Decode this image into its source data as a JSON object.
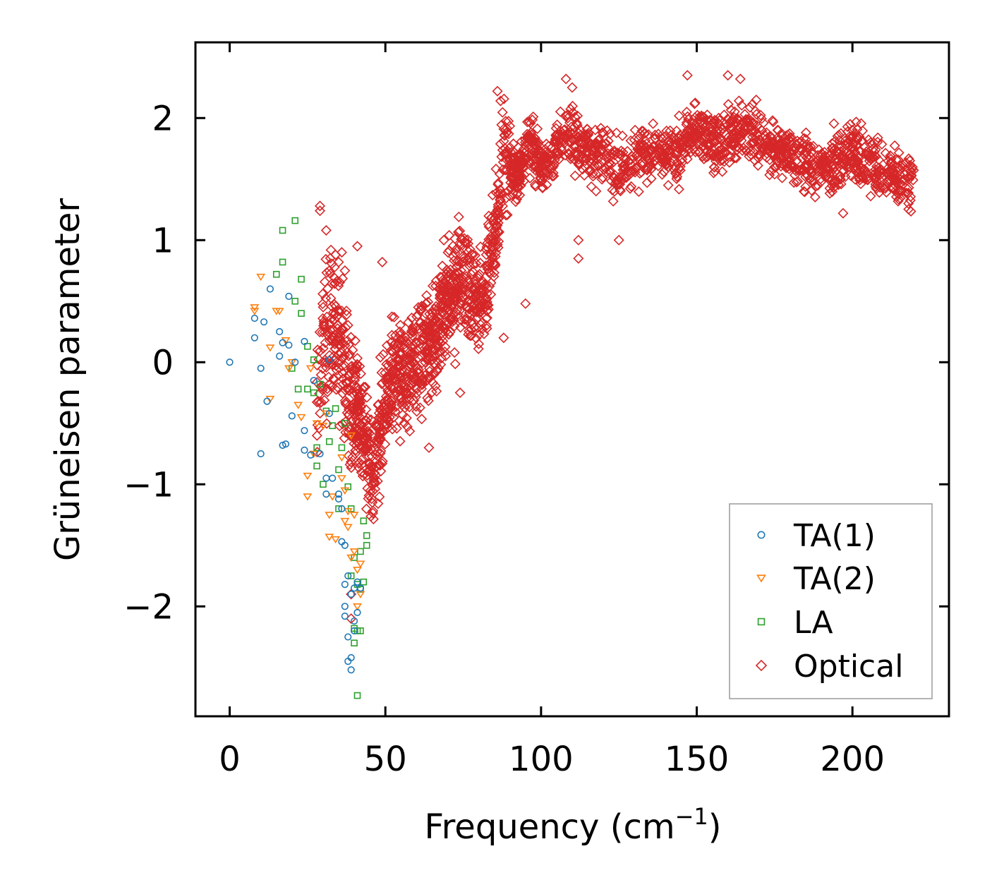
{
  "chart_data": {
    "type": "scatter",
    "xlabel": "Frequency (cm",
    "xlabel_sup": "−1",
    "xlabel_end": ")",
    "ylabel": "Grüneisen parameter",
    "xlim": [
      -11,
      231
    ],
    "ylim": [
      -2.9,
      2.62
    ],
    "xticks": [
      0,
      50,
      100,
      150,
      200
    ],
    "xtick_labels": [
      "0",
      "50",
      "100",
      "150",
      "200"
    ],
    "yticks": [
      -2,
      -1,
      0,
      1,
      2
    ],
    "ytick_labels": [
      "−2",
      "−1",
      "0",
      "1",
      "2"
    ],
    "legend_position": "bottom-right",
    "series": [
      {
        "name": "TA(1)",
        "marker": "circle",
        "color": "#1f77b4",
        "points": [
          [
            0,
            0
          ],
          [
            8,
            0.2
          ],
          [
            8,
            0.36
          ],
          [
            10,
            -0.05
          ],
          [
            10,
            -0.75
          ],
          [
            11,
            0.33
          ],
          [
            12,
            -0.32
          ],
          [
            13,
            0.6
          ],
          [
            16,
            0.05
          ],
          [
            16,
            0.25
          ],
          [
            17,
            -0.68
          ],
          [
            17,
            0.16
          ],
          [
            18,
            -0.67
          ],
          [
            19,
            0.54
          ],
          [
            19,
            0.14
          ],
          [
            20,
            -0.44
          ],
          [
            21,
            0.0
          ],
          [
            24,
            0.17
          ],
          [
            24,
            -0.56
          ],
          [
            24,
            -0.72
          ],
          [
            26,
            -0.76
          ],
          [
            27,
            -0.15
          ],
          [
            29,
            -0.75
          ],
          [
            31,
            -1.08
          ],
          [
            31,
            -0.95
          ],
          [
            32,
            0.02
          ],
          [
            32,
            -0.42
          ],
          [
            33,
            -0.95
          ],
          [
            35,
            -1.12
          ],
          [
            35,
            -1.08
          ],
          [
            36,
            -1.2
          ],
          [
            36,
            -1.47
          ],
          [
            37,
            -1.5
          ],
          [
            37,
            -1.82
          ],
          [
            37,
            -2.0
          ],
          [
            37,
            -2.08
          ],
          [
            38,
            -1.75
          ],
          [
            38,
            -2.25
          ],
          [
            38,
            -2.45
          ],
          [
            39,
            -1.9
          ],
          [
            39,
            -2.42
          ],
          [
            39,
            -2.52
          ],
          [
            40,
            -1.85
          ],
          [
            40,
            -2.12
          ],
          [
            40,
            -2.2
          ],
          [
            41,
            -2.05
          ],
          [
            41,
            -1.8
          ],
          [
            42,
            -1.85
          ]
        ]
      },
      {
        "name": "TA(2)",
        "marker": "triangle-down",
        "color": "#ff7f0e",
        "points": [
          [
            8,
            0.45
          ],
          [
            8,
            0.42
          ],
          [
            10,
            0.7
          ],
          [
            13,
            0.12
          ],
          [
            13,
            -0.3
          ],
          [
            15,
            0.42
          ],
          [
            16,
            0.42
          ],
          [
            18,
            0.18
          ],
          [
            19,
            -0.05
          ],
          [
            20,
            0.0
          ],
          [
            22,
            -0.35
          ],
          [
            23,
            -0.45
          ],
          [
            25,
            -0.93
          ],
          [
            25,
            -1.1
          ],
          [
            26,
            -0.05
          ],
          [
            27,
            -0.75
          ],
          [
            28,
            -0.5
          ],
          [
            30,
            -0.52
          ],
          [
            31,
            -0.42
          ],
          [
            32,
            -1.25
          ],
          [
            32,
            -1.43
          ],
          [
            33,
            -1.1
          ],
          [
            34,
            -1.45
          ],
          [
            36,
            -0.95
          ],
          [
            36,
            -0.78
          ],
          [
            37,
            -1.3
          ],
          [
            37,
            -1.05
          ],
          [
            38,
            -1.35
          ],
          [
            38,
            -1.22
          ],
          [
            39,
            -0.6
          ],
          [
            39,
            -1.6
          ],
          [
            40,
            -1.55
          ],
          [
            40,
            -1.25
          ],
          [
            41,
            -2.0
          ],
          [
            41,
            -1.7
          ],
          [
            42,
            -1.65
          ],
          [
            42,
            -1.9
          ]
        ]
      },
      {
        "name": "LA",
        "marker": "square",
        "color": "#2ca02c",
        "points": [
          [
            17,
            1.08
          ],
          [
            17,
            0.82
          ],
          [
            15,
            0.72
          ],
          [
            21,
            1.16
          ],
          [
            21,
            0.5
          ],
          [
            23,
            0.68
          ],
          [
            23,
            0.4
          ],
          [
            20,
            -0.05
          ],
          [
            22,
            -0.22
          ],
          [
            25,
            -0.22
          ],
          [
            25,
            0.13
          ],
          [
            27,
            -0.25
          ],
          [
            27,
            0.02
          ],
          [
            28,
            -0.85
          ],
          [
            28,
            -0.7
          ],
          [
            29,
            -0.18
          ],
          [
            30,
            -1.0
          ],
          [
            31,
            -0.4
          ],
          [
            32,
            -0.65
          ],
          [
            33,
            -0.52
          ],
          [
            34,
            -0.38
          ],
          [
            35,
            -0.88
          ],
          [
            35,
            -1.2
          ],
          [
            36,
            -0.7
          ],
          [
            37,
            -0.5
          ],
          [
            38,
            -1.02
          ],
          [
            39,
            -1.2
          ],
          [
            39,
            -1.75
          ],
          [
            40,
            -1.6
          ],
          [
            40,
            -2.18
          ],
          [
            40,
            -2.3
          ],
          [
            41,
            -1.82
          ],
          [
            41,
            -2.2
          ],
          [
            41,
            -2.73
          ],
          [
            42,
            -1.55
          ],
          [
            42,
            -1.86
          ],
          [
            42,
            -2.2
          ],
          [
            43,
            -1.3
          ],
          [
            43,
            -1.8
          ],
          [
            44,
            -1.5
          ],
          [
            44,
            -1.42
          ]
        ]
      },
      {
        "name": "Optical",
        "marker": "diamond",
        "color": "#d62728",
        "envelope": [
          [
            28,
            -0.3
          ],
          [
            30,
            0.2
          ],
          [
            34,
            0.3
          ],
          [
            38,
            -0.2
          ],
          [
            42,
            -0.5
          ],
          [
            46,
            -0.9
          ],
          [
            50,
            -0.3
          ],
          [
            54,
            0.0
          ],
          [
            58,
            -0.1
          ],
          [
            62,
            0.1
          ],
          [
            66,
            0.2
          ],
          [
            70,
            0.5
          ],
          [
            74,
            0.7
          ],
          [
            78,
            0.6
          ],
          [
            82,
            0.5
          ],
          [
            85,
            1.0
          ],
          [
            88,
            1.7
          ],
          [
            92,
            1.5
          ],
          [
            96,
            1.8
          ],
          [
            100,
            1.6
          ],
          [
            104,
            1.7
          ],
          [
            108,
            1.9
          ],
          [
            112,
            1.8
          ],
          [
            116,
            1.7
          ],
          [
            120,
            1.7
          ],
          [
            124,
            1.6
          ],
          [
            128,
            1.6
          ],
          [
            132,
            1.7
          ],
          [
            136,
            1.7
          ],
          [
            140,
            1.75
          ],
          [
            144,
            1.7
          ],
          [
            148,
            1.9
          ],
          [
            152,
            1.85
          ],
          [
            156,
            1.8
          ],
          [
            160,
            1.85
          ],
          [
            164,
            1.9
          ],
          [
            168,
            1.85
          ],
          [
            172,
            1.8
          ],
          [
            176,
            1.75
          ],
          [
            180,
            1.7
          ],
          [
            184,
            1.65
          ],
          [
            188,
            1.6
          ],
          [
            192,
            1.6
          ],
          [
            196,
            1.65
          ],
          [
            200,
            1.7
          ],
          [
            204,
            1.65
          ],
          [
            208,
            1.6
          ],
          [
            212,
            1.55
          ],
          [
            216,
            1.5
          ],
          [
            220,
            1.45
          ]
        ],
        "outliers": [
          [
            29,
            1.28
          ],
          [
            29,
            1.24
          ],
          [
            31,
            1.08
          ],
          [
            32,
            0.75
          ],
          [
            34,
            0.88
          ],
          [
            35,
            0.82
          ],
          [
            36,
            0.9
          ],
          [
            37,
            0.75
          ],
          [
            39,
            -2.1
          ],
          [
            39,
            -1.9
          ],
          [
            41,
            0.95
          ],
          [
            49,
            0.82
          ],
          [
            86,
            2.22
          ],
          [
            87,
            2.14
          ],
          [
            108,
            2.32
          ],
          [
            110,
            2.25
          ],
          [
            112,
            1.0
          ],
          [
            112,
            0.85
          ],
          [
            125,
            1.0
          ],
          [
            147,
            2.35
          ],
          [
            160,
            2.35
          ],
          [
            164,
            2.32
          ],
          [
            197,
            1.22
          ],
          [
            218,
            1.3
          ],
          [
            74,
            -0.25
          ],
          [
            64,
            -0.7
          ],
          [
            80,
            0.15
          ],
          [
            88,
            0.2
          ],
          [
            95,
            0.48
          ]
        ]
      }
    ]
  }
}
